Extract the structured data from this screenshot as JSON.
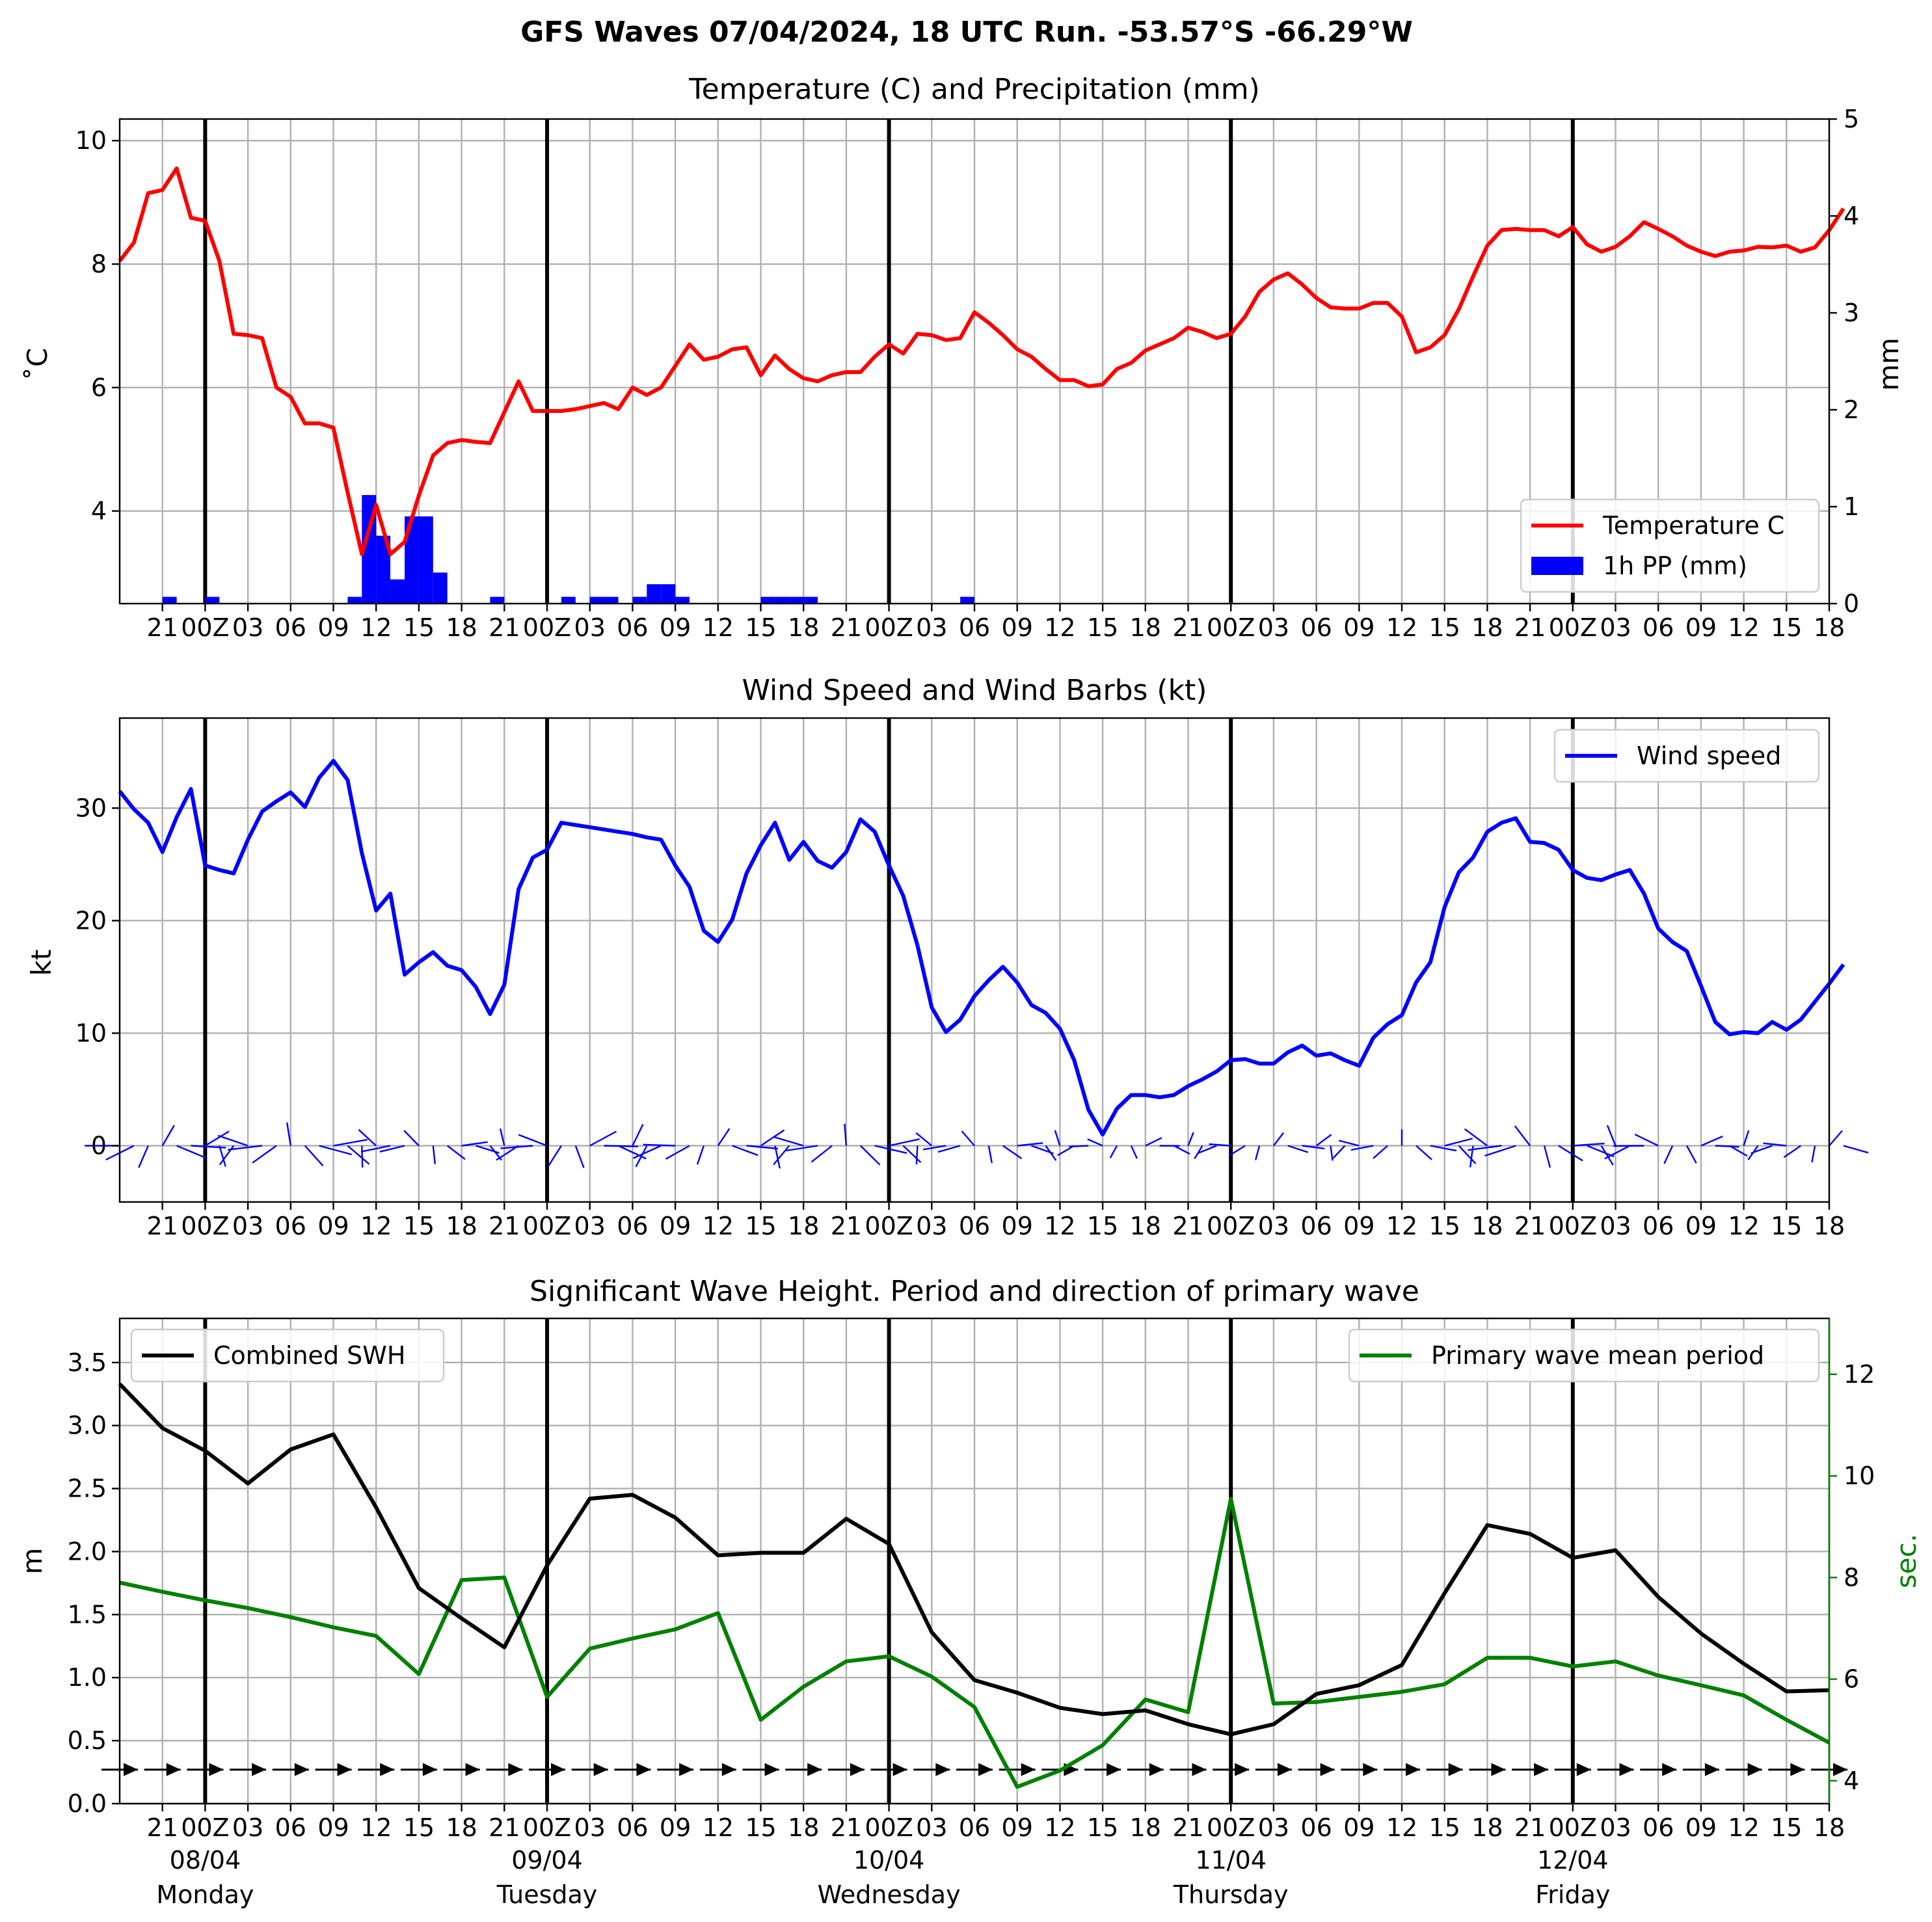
{
  "title": "GFS Waves 07/04/2024, 18 UTC Run. -53.57°S -66.29°W",
  "x_ticks": [
    "21",
    "00Z",
    "03",
    "06",
    "09",
    "12",
    "15",
    "18",
    "21",
    "00Z",
    "03",
    "06",
    "09",
    "12",
    "15",
    "18",
    "21",
    "00Z",
    "03",
    "06",
    "09",
    "12",
    "15",
    "18",
    "21",
    "00Z",
    "03",
    "06",
    "09",
    "12",
    "15",
    "18",
    "21",
    "00Z",
    "03",
    "06",
    "09",
    "12",
    "15",
    "18"
  ],
  "day_labels": [
    {
      "date": "08/04",
      "weekday": "Monday"
    },
    {
      "date": "09/04",
      "weekday": "Tuesday"
    },
    {
      "date": "10/04",
      "weekday": "Wednesday"
    },
    {
      "date": "11/04",
      "weekday": "Thursday"
    },
    {
      "date": "12/04",
      "weekday": "Friday"
    }
  ],
  "colors": {
    "temperature": "#ff0000",
    "precip": "#0000ff",
    "wind": "#0000ff",
    "swh": "#000000",
    "period": "#008000"
  },
  "chart_data": [
    {
      "type": "line",
      "title": "Temperature (C) and Precipitation (mm)",
      "xlabel": "",
      "ylabel": "$^\\circ$C",
      "ylabel_display": "˚C",
      "ylabel_right": "mm",
      "x_range_hours": [
        0,
        120
      ],
      "ylim": [
        2.5,
        10.35
      ],
      "yticks": [
        4,
        6,
        8,
        10
      ],
      "ylim_right": [
        0,
        5
      ],
      "yticks_right": [
        0,
        1,
        2,
        3,
        4,
        5
      ],
      "legend": {
        "position": "lower-right",
        "entries": [
          "Temperature C",
          "1h PP (mm)"
        ]
      },
      "series": [
        {
          "name": "Temperature C",
          "kind": "line",
          "step_hours": 1,
          "values": [
            8.05,
            8.35,
            9.15,
            9.2,
            9.55,
            8.75,
            8.7,
            8.05,
            6.87,
            6.85,
            6.8,
            6.0,
            5.85,
            5.42,
            5.42,
            5.35,
            4.3,
            3.3,
            4.1,
            3.3,
            3.5,
            4.25,
            4.9,
            5.1,
            5.15,
            5.12,
            5.1,
            5.6,
            6.1,
            5.62,
            5.62,
            5.62,
            5.65,
            5.7,
            5.75,
            5.65,
            6.0,
            5.88,
            6.0,
            6.35,
            6.7,
            6.45,
            6.5,
            6.62,
            6.65,
            6.2,
            6.52,
            6.3,
            6.15,
            6.1,
            6.2,
            6.25,
            6.25,
            6.5,
            6.7,
            6.55,
            6.87,
            6.85,
            6.77,
            6.8,
            7.22,
            7.05,
            6.85,
            6.62,
            6.5,
            6.3,
            6.12,
            6.12,
            6.02,
            6.05,
            6.3,
            6.4,
            6.6,
            6.7,
            6.8,
            6.97,
            6.9,
            6.8,
            6.87,
            7.15,
            7.55,
            7.75,
            7.85,
            7.67,
            7.45,
            7.3,
            7.28,
            7.28,
            7.37,
            7.37,
            7.15,
            6.57,
            6.65,
            6.85,
            7.27,
            7.8,
            8.3,
            8.55,
            8.57,
            8.55,
            8.55,
            8.45,
            8.6,
            8.32,
            8.2,
            8.28,
            8.45,
            8.68,
            8.57,
            8.45,
            8.3,
            8.2,
            8.13,
            8.2,
            8.22,
            8.28,
            8.27,
            8.3,
            8.2,
            8.27,
            8.55,
            8.9
          ]
        },
        {
          "name": "1h PP (mm)",
          "kind": "bar",
          "step_hours": 1,
          "axis": "right",
          "values": [
            0,
            0,
            0,
            0.07,
            0,
            0,
            0.07,
            0,
            0,
            0,
            0,
            0,
            0,
            0,
            0,
            0,
            0.07,
            1.12,
            0.7,
            0.25,
            0.9,
            0.9,
            0.32,
            0,
            0,
            0,
            0.07,
            0,
            0,
            0,
            0,
            0.07,
            0,
            0.07,
            0.07,
            0,
            0.07,
            0.2,
            0.2,
            0.07,
            0,
            0,
            0,
            0,
            0,
            0.07,
            0.07,
            0.07,
            0.07,
            0,
            0,
            0,
            0,
            0,
            0,
            0,
            0,
            0,
            0,
            0.07,
            0,
            0,
            0,
            0,
            0,
            0,
            0,
            0,
            0,
            0,
            0,
            0,
            0,
            0,
            0,
            0,
            0,
            0,
            0,
            0,
            0,
            0,
            0,
            0,
            0,
            0,
            0,
            0,
            0,
            0,
            0,
            0,
            0,
            0,
            0,
            0,
            0,
            0,
            0,
            0,
            0,
            0,
            0,
            0,
            0,
            0,
            0,
            0,
            0,
            0,
            0,
            0,
            0,
            0,
            0,
            0,
            0,
            0,
            0,
            0,
            0
          ]
        }
      ]
    },
    {
      "type": "line",
      "title": "Wind Speed and Wind Barbs (kt)",
      "xlabel": "",
      "ylabel": "kt",
      "x_range_hours": [
        0,
        120
      ],
      "ylim": [
        -5,
        38
      ],
      "yticks": [
        0,
        10,
        20,
        30
      ],
      "legend": {
        "position": "top-right",
        "entries": [
          "Wind speed"
        ]
      },
      "series": [
        {
          "name": "Wind speed",
          "kind": "line",
          "step_hours": 1,
          "values": [
            31.5,
            29.9,
            28.7,
            26.1,
            29.2,
            31.7,
            24.9,
            24.5,
            24.2,
            27.2,
            29.7,
            30.6,
            31.4,
            30.1,
            32.7,
            34.2,
            32.5,
            26.0,
            20.9,
            22.4,
            15.2,
            16.3,
            17.2,
            16.0,
            15.6,
            14.1,
            11.7,
            14.3,
            22.8,
            25.6,
            26.3,
            28.7,
            28.5,
            28.3,
            28.1,
            27.9,
            27.7,
            27.4,
            27.2,
            24.9,
            23.0,
            19.1,
            18.1,
            20.1,
            24.2,
            26.7,
            28.7,
            25.4,
            27.0,
            25.3,
            24.7,
            26.1,
            29.0,
            27.9,
            24.9,
            22.2,
            17.8,
            12.3,
            10.1,
            11.2,
            13.3,
            14.7,
            15.9,
            14.5,
            12.5,
            11.8,
            10.4,
            7.6,
            3.2,
            1.0,
            3.3,
            4.5,
            4.5,
            4.3,
            4.5,
            5.3,
            5.9,
            6.6,
            7.6,
            7.7,
            7.3,
            7.3,
            8.3,
            8.9,
            8.0,
            8.2,
            7.6,
            7.1,
            9.6,
            10.8,
            11.6,
            14.5,
            16.3,
            21.2,
            24.3,
            25.6,
            27.9,
            28.7,
            29.1,
            27.0,
            26.9,
            26.3,
            24.5,
            23.8,
            23.6,
            24.1,
            24.5,
            22.4,
            19.3,
            18.1,
            17.3,
            14.2,
            11.0,
            9.9,
            10.1,
            10.0,
            11.0,
            10.3,
            11.2,
            12.8,
            14.4,
            16.1
          ]
        }
      ]
    },
    {
      "type": "line",
      "title": "Significant Wave Height. Period and direction of primary wave",
      "xlabel": "",
      "ylabel": "m",
      "ylabel_right": "sec.",
      "x_range_hours": [
        0,
        120
      ],
      "ylim": [
        0,
        3.85
      ],
      "yticks": [
        0.0,
        0.5,
        1.0,
        1.5,
        2.0,
        2.5,
        3.0,
        3.5
      ],
      "ylim_right": [
        3.55,
        13.1
      ],
      "yticks_right": [
        4,
        6,
        8,
        10,
        12
      ],
      "legend": [
        {
          "position": "top-left",
          "entries": [
            "Combined SWH"
          ]
        },
        {
          "position": "top-right",
          "entries": [
            "Primary wave mean period"
          ]
        }
      ],
      "series": [
        {
          "name": "Combined SWH",
          "kind": "line",
          "step_hours": 3,
          "values": [
            3.33,
            2.98,
            2.8,
            2.54,
            2.81,
            2.93,
            2.35,
            1.71,
            1.47,
            1.24,
            1.89,
            2.42,
            2.45,
            2.27,
            1.97,
            1.99,
            1.99,
            2.26,
            2.06,
            1.36,
            0.98,
            0.88,
            0.76,
            0.71,
            0.74,
            0.63,
            0.55,
            0.63,
            0.87,
            0.94,
            1.1,
            1.67,
            2.21,
            2.14,
            1.95,
            2.01,
            1.64,
            1.35,
            1.11,
            0.89,
            0.9
          ]
        },
        {
          "name": "Primary wave mean period",
          "kind": "line",
          "axis": "right",
          "step_hours": 3,
          "values": [
            7.9,
            7.72,
            7.55,
            7.4,
            7.22,
            7.02,
            6.85,
            6.1,
            7.95,
            8.0,
            5.65,
            6.6,
            6.8,
            6.98,
            7.3,
            5.2,
            5.85,
            6.35,
            6.45,
            6.05,
            5.45,
            3.88,
            4.2,
            4.7,
            5.6,
            5.35,
            9.55,
            5.52,
            5.55,
            5.65,
            5.75,
            5.9,
            6.42,
            6.42,
            6.25,
            6.35,
            6.07,
            5.88,
            5.68,
            5.2,
            4.75
          ]
        }
      ]
    }
  ]
}
